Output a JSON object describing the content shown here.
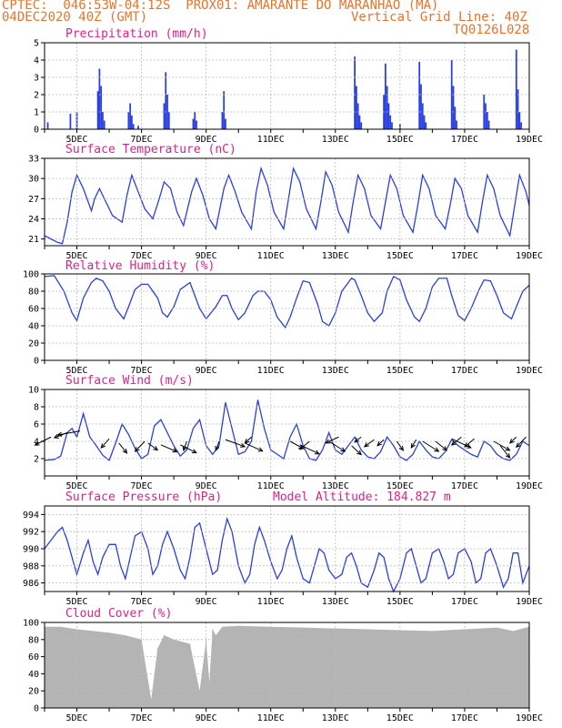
{
  "header": {
    "line1": "CPTEC:  046:53W-04:12S  PROX01: AMARANTE DO MARANHAO (MA)",
    "line2_left": "04DEC2020 40Z (GMT)",
    "line2_right": "Vertical Grid Line: 40Z",
    "line3_right": "TQ0126L028"
  },
  "colors": {
    "header": "#e8742a",
    "title": "#e0208a",
    "series": "#2a3fe0",
    "cloud": "#b4b4b4",
    "grid": "#bbbbbb"
  },
  "x_labels": [
    "5DEC",
    "7DEC",
    "9DEC",
    "11DEC",
    "13DEC",
    "15DEC",
    "17DEC",
    "19DEC"
  ],
  "chart_data": [
    {
      "id": "precip",
      "type": "bar",
      "title": "Precipitation (mm/h)",
      "ylim": [
        0,
        5
      ],
      "yticks": [
        0,
        1,
        2,
        3,
        4,
        5
      ],
      "day_range": [
        4.0,
        19.0
      ],
      "values": [
        [
          4.1,
          0.4
        ],
        [
          4.8,
          0.9
        ],
        [
          5.0,
          1.0
        ],
        [
          5.65,
          2.2
        ],
        [
          5.7,
          3.5
        ],
        [
          5.75,
          2.5
        ],
        [
          5.8,
          1.0
        ],
        [
          5.85,
          0.5
        ],
        [
          6.6,
          1.0
        ],
        [
          6.65,
          1.5
        ],
        [
          6.7,
          0.8
        ],
        [
          6.75,
          0.3
        ],
        [
          6.9,
          0.2
        ],
        [
          7.7,
          1.5
        ],
        [
          7.75,
          3.3
        ],
        [
          7.8,
          2.0
        ],
        [
          7.85,
          1.0
        ],
        [
          8.6,
          0.6
        ],
        [
          8.65,
          1.0
        ],
        [
          8.7,
          0.5
        ],
        [
          9.5,
          1.0
        ],
        [
          9.55,
          2.2
        ],
        [
          9.6,
          0.6
        ],
        [
          13.6,
          4.2
        ],
        [
          13.65,
          2.5
        ],
        [
          13.7,
          1.5
        ],
        [
          13.75,
          0.8
        ],
        [
          13.8,
          0.4
        ],
        [
          14.5,
          2.0
        ],
        [
          14.55,
          3.8
        ],
        [
          14.6,
          2.5
        ],
        [
          14.65,
          1.5
        ],
        [
          14.7,
          0.8
        ],
        [
          14.75,
          0.4
        ],
        [
          15.0,
          0.3
        ],
        [
          15.6,
          3.9
        ],
        [
          15.65,
          2.6
        ],
        [
          15.7,
          1.5
        ],
        [
          15.75,
          0.8
        ],
        [
          15.8,
          0.4
        ],
        [
          16.6,
          4.0
        ],
        [
          16.65,
          2.5
        ],
        [
          16.7,
          1.3
        ],
        [
          16.75,
          0.5
        ],
        [
          17.6,
          2.0
        ],
        [
          17.65,
          1.5
        ],
        [
          17.7,
          1.0
        ],
        [
          17.75,
          0.5
        ],
        [
          18.6,
          4.6
        ],
        [
          18.65,
          2.3
        ],
        [
          18.7,
          1.0
        ],
        [
          18.75,
          0.4
        ]
      ]
    },
    {
      "id": "temp",
      "type": "line",
      "title": "Surface Temperature (nC)",
      "ylim": [
        20,
        33
      ],
      "yticks": [
        21,
        24,
        27,
        30,
        33
      ],
      "x": [
        4.0,
        4.2,
        4.4,
        4.55,
        4.7,
        4.85,
        5.0,
        5.2,
        5.45,
        5.55,
        5.7,
        5.9,
        6.1,
        6.4,
        6.55,
        6.7,
        6.9,
        7.1,
        7.35,
        7.55,
        7.7,
        7.9,
        8.1,
        8.3,
        8.55,
        8.7,
        8.9,
        9.1,
        9.3,
        9.55,
        9.7,
        9.9,
        10.1,
        10.4,
        10.55,
        10.7,
        10.9,
        11.1,
        11.4,
        11.55,
        11.7,
        11.9,
        12.1,
        12.4,
        12.55,
        12.7,
        12.9,
        13.1,
        13.4,
        13.55,
        13.7,
        13.9,
        14.1,
        14.4,
        14.55,
        14.7,
        14.9,
        15.1,
        15.4,
        15.55,
        15.7,
        15.9,
        16.1,
        16.4,
        16.55,
        16.7,
        16.9,
        17.1,
        17.4,
        17.55,
        17.7,
        17.9,
        18.1,
        18.4,
        18.55,
        18.7,
        18.9,
        19.0
      ],
      "values": [
        21.5,
        21.0,
        20.5,
        20.3,
        23.5,
        28.0,
        30.5,
        28.5,
        25.2,
        27.0,
        28.5,
        26.5,
        24.5,
        23.5,
        27.5,
        30.5,
        28.0,
        25.5,
        24.0,
        27.0,
        29.5,
        28.5,
        25.0,
        23.0,
        28.0,
        30.0,
        27.5,
        24.0,
        22.5,
        28.5,
        30.5,
        28.0,
        25.0,
        22.5,
        28.0,
        31.5,
        29.0,
        25.0,
        22.5,
        27.0,
        31.5,
        29.5,
        25.5,
        22.5,
        26.5,
        31.0,
        29.0,
        25.0,
        22.0,
        26.5,
        30.5,
        28.5,
        24.5,
        22.5,
        26.5,
        30.5,
        28.5,
        24.5,
        22.0,
        26.0,
        30.5,
        28.5,
        24.5,
        22.5,
        26.0,
        30.0,
        28.5,
        24.5,
        22.0,
        26.5,
        30.5,
        28.5,
        24.5,
        21.5,
        26.0,
        30.5,
        28.0,
        26.0
      ]
    },
    {
      "id": "rh",
      "type": "line",
      "title": "Relative Humidity (%)",
      "ylim": [
        0,
        100
      ],
      "yticks": [
        0,
        20,
        40,
        60,
        80,
        100
      ],
      "x": [
        4.0,
        4.3,
        4.6,
        4.85,
        5.0,
        5.2,
        5.45,
        5.6,
        5.8,
        6.0,
        6.2,
        6.45,
        6.6,
        6.8,
        7.0,
        7.2,
        7.5,
        7.65,
        7.8,
        8.0,
        8.2,
        8.5,
        8.6,
        8.8,
        9.0,
        9.3,
        9.5,
        9.65,
        9.8,
        10.0,
        10.2,
        10.45,
        10.6,
        10.8,
        11.0,
        11.2,
        11.45,
        11.6,
        11.8,
        12.0,
        12.2,
        12.45,
        12.6,
        12.8,
        13.0,
        13.2,
        13.5,
        13.6,
        13.8,
        14.0,
        14.2,
        14.45,
        14.6,
        14.8,
        15.0,
        15.2,
        15.45,
        15.6,
        15.8,
        16.0,
        16.2,
        16.45,
        16.6,
        16.8,
        17.0,
        17.2,
        17.45,
        17.6,
        17.8,
        18.0,
        18.2,
        18.45,
        18.6,
        18.8,
        19.0
      ],
      "values": [
        97,
        98,
        80,
        55,
        46,
        72,
        90,
        95,
        92,
        80,
        60,
        48,
        62,
        82,
        88,
        88,
        72,
        55,
        50,
        62,
        82,
        90,
        80,
        60,
        48,
        62,
        75,
        75,
        60,
        47,
        55,
        75,
        80,
        80,
        70,
        50,
        38,
        50,
        72,
        92,
        90,
        65,
        45,
        40,
        55,
        80,
        95,
        93,
        75,
        55,
        45,
        55,
        80,
        97,
        93,
        70,
        50,
        45,
        60,
        85,
        95,
        95,
        75,
        52,
        46,
        60,
        82,
        93,
        92,
        75,
        55,
        48,
        62,
        80,
        87
      ]
    },
    {
      "id": "wind",
      "type": "line",
      "title": "Surface Wind (m/s)",
      "ylim": [
        0,
        10
      ],
      "yticks": [
        2,
        4,
        6,
        8,
        10
      ],
      "x": [
        4.0,
        4.3,
        4.5,
        4.7,
        4.85,
        5.0,
        5.2,
        5.4,
        5.6,
        5.8,
        6.0,
        6.2,
        6.4,
        6.6,
        6.8,
        7.0,
        7.2,
        7.4,
        7.6,
        7.8,
        8.0,
        8.2,
        8.4,
        8.6,
        8.8,
        9.0,
        9.2,
        9.4,
        9.6,
        9.8,
        10.0,
        10.2,
        10.4,
        10.6,
        10.8,
        11.0,
        11.2,
        11.4,
        11.6,
        11.8,
        12.0,
        12.2,
        12.4,
        12.6,
        12.8,
        13.0,
        13.2,
        13.4,
        13.6,
        13.8,
        14.0,
        14.2,
        14.4,
        14.6,
        14.8,
        15.0,
        15.2,
        15.4,
        15.6,
        15.8,
        16.0,
        16.2,
        16.4,
        16.6,
        16.8,
        17.0,
        17.2,
        17.4,
        17.6,
        17.8,
        18.0,
        18.2,
        18.4,
        18.6,
        18.8,
        19.0
      ],
      "values": [
        1.8,
        1.9,
        2.3,
        5.0,
        5.5,
        4.5,
        7.2,
        4.5,
        3.5,
        2.4,
        1.8,
        3.8,
        6.0,
        4.8,
        3.2,
        2.0,
        2.5,
        5.8,
        6.5,
        5.0,
        3.5,
        2.3,
        3.0,
        5.5,
        6.5,
        3.5,
        2.5,
        3.5,
        8.5,
        5.5,
        2.5,
        2.8,
        4.0,
        8.8,
        5.5,
        3.0,
        2.5,
        2.0,
        4.5,
        6.0,
        3.5,
        2.0,
        1.8,
        3.0,
        5.0,
        3.0,
        2.5,
        3.5,
        4.5,
        3.0,
        2.2,
        2.0,
        2.8,
        4.5,
        3.5,
        2.2,
        1.8,
        2.5,
        4.0,
        3.0,
        2.2,
        2.0,
        2.8,
        4.2,
        3.5,
        3.0,
        2.5,
        2.2,
        4.0,
        3.5,
        2.5,
        2.0,
        1.8,
        2.5,
        4.0,
        3.5
      ]
    },
    {
      "id": "pressure",
      "type": "line",
      "title": "Surface Pressure (hPa)",
      "annotation": "Model Altitude: 184.827 m",
      "ylim": [
        985,
        995
      ],
      "yticks": [
        986,
        988,
        990,
        992,
        994
      ],
      "x": [
        4.0,
        4.2,
        4.4,
        4.55,
        4.7,
        4.85,
        5.0,
        5.2,
        5.35,
        5.5,
        5.65,
        5.8,
        6.0,
        6.2,
        6.35,
        6.5,
        6.65,
        6.8,
        7.0,
        7.2,
        7.35,
        7.5,
        7.65,
        7.8,
        8.0,
        8.2,
        8.35,
        8.5,
        8.65,
        8.8,
        9.0,
        9.2,
        9.35,
        9.5,
        9.65,
        9.8,
        10.0,
        10.2,
        10.35,
        10.5,
        10.65,
        10.8,
        11.0,
        11.2,
        11.35,
        11.5,
        11.65,
        11.8,
        12.0,
        12.2,
        12.35,
        12.5,
        12.65,
        12.8,
        13.0,
        13.2,
        13.35,
        13.5,
        13.65,
        13.8,
        14.0,
        14.2,
        14.35,
        14.5,
        14.65,
        14.8,
        15.0,
        15.2,
        15.35,
        15.5,
        15.65,
        15.8,
        16.0,
        16.2,
        16.35,
        16.5,
        16.65,
        16.8,
        17.0,
        17.2,
        17.35,
        17.5,
        17.65,
        17.8,
        18.0,
        18.2,
        18.35,
        18.5,
        18.65,
        18.8,
        19.0
      ],
      "values": [
        990.0,
        991.0,
        992.0,
        992.5,
        991.0,
        989.0,
        987.0,
        989.5,
        991.0,
        988.5,
        987.0,
        989.0,
        990.5,
        990.5,
        988.0,
        986.5,
        989.0,
        991.5,
        992.0,
        990.0,
        987.0,
        988.0,
        990.5,
        992.0,
        990.0,
        987.5,
        986.5,
        989.0,
        992.5,
        993.0,
        990.0,
        987.0,
        987.5,
        991.0,
        993.5,
        992.0,
        988.0,
        986.0,
        987.0,
        990.5,
        992.5,
        991.0,
        988.5,
        986.5,
        987.5,
        990.0,
        991.5,
        989.0,
        986.5,
        986.0,
        988.0,
        990.0,
        989.5,
        987.5,
        986.5,
        987.0,
        989.0,
        989.5,
        988.0,
        986.0,
        985.5,
        987.5,
        989.5,
        989.0,
        986.5,
        985.0,
        986.5,
        989.5,
        990.0,
        988.0,
        986.0,
        986.5,
        989.5,
        990.0,
        988.5,
        986.5,
        987.0,
        989.5,
        990.0,
        988.5,
        986.0,
        986.5,
        989.5,
        990.0,
        988.0,
        985.5,
        986.5,
        989.5,
        989.5,
        986.0,
        988.0
      ]
    },
    {
      "id": "cloud",
      "type": "bar",
      "title": "Cloud Cover (%)",
      "ylim": [
        0,
        100
      ],
      "yticks": [
        0,
        20,
        40,
        60,
        80,
        100
      ],
      "day_range": [
        4.0,
        19.0
      ],
      "x": [
        4.0,
        4.5,
        5.0,
        5.5,
        6.0,
        6.5,
        7.0,
        7.3,
        7.5,
        7.7,
        8.0,
        8.5,
        8.8,
        9.0,
        9.1,
        9.2,
        9.3,
        9.5,
        10.0,
        11.0,
        12.0,
        13.0,
        14.0,
        15.0,
        16.0,
        17.0,
        18.0,
        18.5,
        19.0
      ],
      "values": [
        95,
        95,
        92,
        90,
        88,
        85,
        80,
        10,
        70,
        85,
        80,
        75,
        20,
        80,
        30,
        92,
        85,
        95,
        96,
        95,
        94,
        93,
        92,
        91,
        90,
        92,
        94,
        90,
        95
      ]
    }
  ],
  "wind_arrows": [
    [
      4.2,
      4.5,
      -0.5,
      0.4
    ],
    [
      4.7,
      5.0,
      -0.4,
      0.25
    ],
    [
      5.1,
      5.2,
      -0.7,
      0.2
    ],
    [
      6.0,
      4.3,
      -0.25,
      0.45
    ],
    [
      6.3,
      3.8,
      0.25,
      0.5
    ],
    [
      7.1,
      4.0,
      -0.3,
      0.5
    ],
    [
      7.2,
      3.8,
      0.3,
      0.35
    ],
    [
      7.6,
      3.6,
      0.5,
      0.35
    ],
    [
      8.2,
      3.6,
      0.5,
      0.4
    ],
    [
      8.4,
      4.0,
      -0.1,
      0.45
    ],
    [
      9.4,
      4.0,
      -0.1,
      0.45
    ],
    [
      9.6,
      4.2,
      0.6,
      0.35
    ],
    [
      10.2,
      3.8,
      0.55,
      0.4
    ],
    [
      10.4,
      4.5,
      -0.2,
      0.3
    ],
    [
      11.6,
      4.0,
      0.4,
      0.35
    ],
    [
      11.9,
      3.6,
      0.6,
      0.45
    ],
    [
      12.2,
      4.0,
      -0.3,
      0.4
    ],
    [
      12.8,
      4.0,
      0.5,
      0.5
    ],
    [
      13.1,
      4.5,
      -0.4,
      0.3
    ],
    [
      13.5,
      3.5,
      0.3,
      0.45
    ],
    [
      13.8,
      4.5,
      -0.2,
      0.25
    ],
    [
      14.2,
      4.2,
      -0.3,
      0.35
    ],
    [
      14.5,
      4.2,
      -0.2,
      0.3
    ],
    [
      14.9,
      4.0,
      0.2,
      0.45
    ],
    [
      15.5,
      4.2,
      -0.15,
      0.4
    ],
    [
      15.7,
      4.0,
      0.5,
      0.5
    ],
    [
      16.1,
      4.0,
      0.35,
      0.45
    ],
    [
      16.6,
      4.3,
      0.6,
      0.45
    ],
    [
      16.9,
      4.5,
      -0.3,
      0.4
    ],
    [
      17.3,
      4.3,
      -0.3,
      0.4
    ],
    [
      17.9,
      4.0,
      0.5,
      0.45
    ],
    [
      18.1,
      3.5,
      0.3,
      0.6
    ],
    [
      18.6,
      4.5,
      -0.2,
      0.3
    ],
    [
      18.9,
      4.5,
      -0.3,
      0.5
    ]
  ]
}
